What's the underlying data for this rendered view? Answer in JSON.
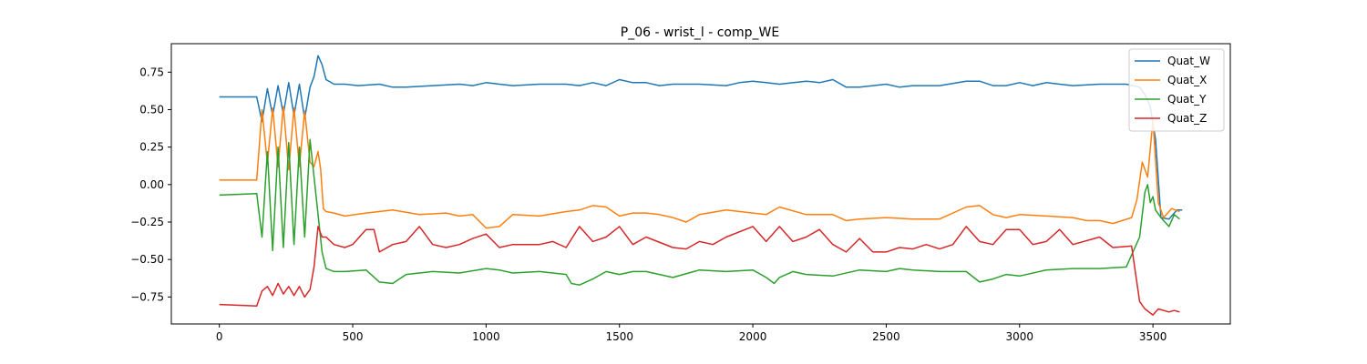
{
  "chart_data": {
    "type": "line",
    "title": "P_06 - wrist_l - comp_WE",
    "xlabel": "",
    "ylabel": "",
    "xlim": [
      -180,
      3790
    ],
    "ylim": [
      -0.93,
      0.94
    ],
    "xticks": [
      0,
      500,
      1000,
      1500,
      2000,
      2500,
      3000,
      3500
    ],
    "yticks": [
      -0.75,
      -0.5,
      -0.25,
      0.0,
      0.25,
      0.5,
      0.75
    ],
    "ytick_labels": [
      "−0.75",
      "−0.50",
      "−0.25",
      "0.00",
      "0.25",
      "0.50",
      "0.75"
    ],
    "legend": {
      "placement": "top-right"
    },
    "grid": false,
    "series": [
      {
        "name": "Quat_W",
        "color": "#1f77b4",
        "x": [
          0,
          140,
          160,
          180,
          200,
          220,
          240,
          260,
          280,
          300,
          320,
          340,
          355,
          370,
          385,
          400,
          430,
          470,
          520,
          600,
          650,
          700,
          800,
          900,
          950,
          1000,
          1050,
          1100,
          1200,
          1300,
          1350,
          1400,
          1450,
          1500,
          1550,
          1600,
          1650,
          1700,
          1800,
          1900,
          1950,
          2000,
          2050,
          2100,
          2200,
          2250,
          2300,
          2350,
          2400,
          2500,
          2550,
          2600,
          2700,
          2800,
          2850,
          2900,
          2950,
          3000,
          3050,
          3100,
          3150,
          3200,
          3300,
          3400,
          3450,
          3470,
          3490,
          3510,
          3530,
          3560,
          3590,
          3610
        ],
        "values": [
          0.585,
          0.585,
          0.42,
          0.64,
          0.46,
          0.66,
          0.47,
          0.68,
          0.46,
          0.67,
          0.44,
          0.65,
          0.72,
          0.86,
          0.8,
          0.7,
          0.67,
          0.67,
          0.66,
          0.67,
          0.65,
          0.65,
          0.66,
          0.67,
          0.66,
          0.68,
          0.67,
          0.66,
          0.67,
          0.67,
          0.66,
          0.68,
          0.66,
          0.7,
          0.68,
          0.68,
          0.66,
          0.67,
          0.67,
          0.66,
          0.68,
          0.69,
          0.68,
          0.67,
          0.69,
          0.68,
          0.7,
          0.65,
          0.65,
          0.67,
          0.65,
          0.66,
          0.66,
          0.69,
          0.69,
          0.66,
          0.66,
          0.68,
          0.66,
          0.68,
          0.67,
          0.66,
          0.67,
          0.67,
          0.65,
          0.6,
          0.52,
          0.3,
          -0.22,
          -0.23,
          -0.17,
          -0.17
        ]
      },
      {
        "name": "Quat_X",
        "color": "#ff7f0e",
        "x": [
          0,
          140,
          160,
          180,
          200,
          220,
          240,
          260,
          280,
          300,
          320,
          340,
          355,
          370,
          380,
          390,
          400,
          430,
          470,
          550,
          650,
          750,
          850,
          900,
          950,
          1000,
          1050,
          1100,
          1200,
          1300,
          1350,
          1400,
          1450,
          1500,
          1550,
          1600,
          1650,
          1700,
          1750,
          1800,
          1900,
          2000,
          2050,
          2100,
          2200,
          2300,
          2350,
          2400,
          2500,
          2600,
          2700,
          2800,
          2850,
          2900,
          2950,
          3000,
          3100,
          3200,
          3250,
          3300,
          3350,
          3420,
          3440,
          3460,
          3480,
          3500,
          3520,
          3540,
          3570,
          3600
        ],
        "values": [
          0.03,
          0.03,
          0.5,
          0.14,
          0.51,
          0.12,
          0.52,
          0.1,
          0.51,
          0.12,
          0.49,
          0.15,
          0.12,
          0.22,
          0.1,
          -0.16,
          -0.18,
          -0.19,
          -0.21,
          -0.19,
          -0.17,
          -0.2,
          -0.19,
          -0.21,
          -0.2,
          -0.29,
          -0.28,
          -0.2,
          -0.21,
          -0.18,
          -0.17,
          -0.14,
          -0.15,
          -0.21,
          -0.19,
          -0.19,
          -0.2,
          -0.22,
          -0.25,
          -0.2,
          -0.17,
          -0.19,
          -0.2,
          -0.15,
          -0.2,
          -0.2,
          -0.24,
          -0.23,
          -0.22,
          -0.23,
          -0.23,
          -0.15,
          -0.14,
          -0.2,
          -0.22,
          -0.2,
          -0.21,
          -0.22,
          -0.24,
          -0.24,
          -0.26,
          -0.22,
          -0.1,
          0.15,
          0.05,
          0.43,
          -0.12,
          -0.22,
          -0.16,
          -0.18
        ]
      },
      {
        "name": "Quat_Y",
        "color": "#2ca02c",
        "x": [
          0,
          140,
          160,
          180,
          200,
          220,
          240,
          260,
          280,
          300,
          320,
          340,
          355,
          370,
          385,
          400,
          430,
          470,
          550,
          600,
          650,
          700,
          800,
          900,
          1000,
          1050,
          1100,
          1200,
          1300,
          1320,
          1350,
          1400,
          1450,
          1500,
          1550,
          1600,
          1650,
          1700,
          1800,
          1900,
          2000,
          2050,
          2080,
          2100,
          2150,
          2200,
          2300,
          2400,
          2500,
          2550,
          2600,
          2700,
          2800,
          2850,
          2900,
          2950,
          3000,
          3100,
          3200,
          3300,
          3400,
          3450,
          3470,
          3480,
          3490,
          3500,
          3510,
          3530,
          3560,
          3580,
          3600
        ],
        "values": [
          -0.07,
          -0.06,
          -0.35,
          0.22,
          -0.44,
          0.25,
          -0.42,
          0.28,
          -0.4,
          0.25,
          -0.35,
          0.3,
          0.05,
          -0.2,
          -0.45,
          -0.56,
          -0.58,
          -0.58,
          -0.57,
          -0.65,
          -0.66,
          -0.6,
          -0.58,
          -0.59,
          -0.56,
          -0.57,
          -0.59,
          -0.58,
          -0.6,
          -0.66,
          -0.67,
          -0.63,
          -0.58,
          -0.6,
          -0.58,
          -0.58,
          -0.6,
          -0.62,
          -0.57,
          -0.58,
          -0.57,
          -0.62,
          -0.66,
          -0.62,
          -0.58,
          -0.6,
          -0.61,
          -0.57,
          -0.58,
          -0.56,
          -0.57,
          -0.58,
          -0.58,
          -0.65,
          -0.63,
          -0.6,
          -0.61,
          -0.57,
          -0.56,
          -0.56,
          -0.55,
          -0.35,
          -0.05,
          0.0,
          -0.12,
          -0.08,
          -0.17,
          -0.22,
          -0.28,
          -0.2,
          -0.23
        ]
      },
      {
        "name": "Quat_Z",
        "color": "#d62728",
        "x": [
          0,
          140,
          160,
          180,
          200,
          220,
          240,
          260,
          280,
          300,
          320,
          340,
          355,
          370,
          385,
          400,
          430,
          470,
          500,
          550,
          580,
          600,
          650,
          700,
          750,
          800,
          850,
          900,
          950,
          1000,
          1050,
          1100,
          1200,
          1250,
          1300,
          1350,
          1400,
          1450,
          1500,
          1550,
          1600,
          1700,
          1750,
          1800,
          1850,
          1900,
          2000,
          2050,
          2100,
          2150,
          2200,
          2250,
          2300,
          2350,
          2400,
          2450,
          2500,
          2550,
          2600,
          2650,
          2700,
          2750,
          2800,
          2850,
          2900,
          2950,
          3000,
          3050,
          3100,
          3150,
          3200,
          3300,
          3350,
          3420,
          3450,
          3470,
          3500,
          3520,
          3560,
          3580,
          3600
        ],
        "values": [
          -0.8,
          -0.81,
          -0.71,
          -0.68,
          -0.74,
          -0.66,
          -0.73,
          -0.68,
          -0.74,
          -0.68,
          -0.75,
          -0.7,
          -0.55,
          -0.28,
          -0.35,
          -0.35,
          -0.4,
          -0.42,
          -0.4,
          -0.3,
          -0.3,
          -0.45,
          -0.4,
          -0.38,
          -0.28,
          -0.4,
          -0.42,
          -0.4,
          -0.36,
          -0.33,
          -0.42,
          -0.4,
          -0.4,
          -0.38,
          -0.42,
          -0.28,
          -0.38,
          -0.35,
          -0.28,
          -0.4,
          -0.35,
          -0.42,
          -0.43,
          -0.38,
          -0.4,
          -0.35,
          -0.28,
          -0.38,
          -0.28,
          -0.38,
          -0.35,
          -0.3,
          -0.4,
          -0.45,
          -0.36,
          -0.45,
          -0.45,
          -0.42,
          -0.43,
          -0.4,
          -0.43,
          -0.4,
          -0.28,
          -0.38,
          -0.4,
          -0.3,
          -0.3,
          -0.4,
          -0.38,
          -0.3,
          -0.4,
          -0.35,
          -0.42,
          -0.41,
          -0.78,
          -0.83,
          -0.87,
          -0.83,
          -0.85,
          -0.84,
          -0.85
        ]
      }
    ]
  }
}
